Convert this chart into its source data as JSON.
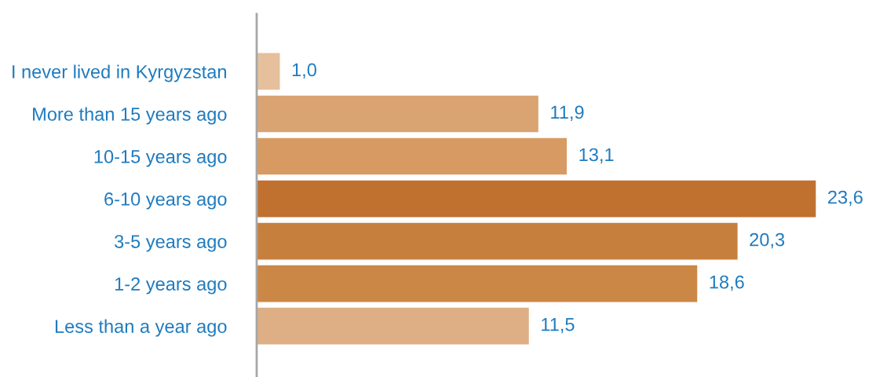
{
  "chart_data": {
    "type": "bar",
    "orientation": "horizontal",
    "categories": [
      "I never lived in Kyrgyzstan",
      "More than 15 years ago",
      "10-15 years ago",
      "6-10 years ago",
      "3-5 years ago",
      "1-2 years ago",
      "Less than a year ago"
    ],
    "values": [
      1.0,
      11.9,
      13.1,
      23.6,
      20.3,
      18.6,
      11.5
    ],
    "colors": [
      "#e6c09c",
      "#d9a372",
      "#d69a62",
      "#c07130",
      "#c77f3e",
      "#cb8746",
      "#deae84"
    ],
    "value_labels": [
      "1,0",
      "11,9",
      "13,1",
      "23,6",
      "20,3",
      "18,6",
      "11,5"
    ],
    "tick_labels": "y",
    "grid": false,
    "legend": false
  }
}
